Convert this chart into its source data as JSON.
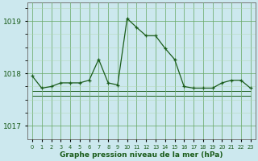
{
  "x": [
    0,
    1,
    2,
    3,
    4,
    5,
    6,
    7,
    8,
    9,
    10,
    11,
    12,
    13,
    14,
    15,
    16,
    17,
    18,
    19,
    20,
    21,
    22,
    23
  ],
  "y_main": [
    1017.95,
    1017.72,
    1017.75,
    1017.82,
    1017.82,
    1017.82,
    1017.87,
    1018.27,
    1017.82,
    1017.78,
    1019.05,
    1018.88,
    1018.72,
    1018.72,
    1018.48,
    1018.27,
    1017.75,
    1017.72,
    1017.72,
    1017.72,
    1017.82,
    1017.87,
    1017.87,
    1017.72
  ],
  "y_flat1": [
    1017.67,
    1017.67,
    1017.67,
    1017.67,
    1017.67,
    1017.67,
    1017.67,
    1017.67,
    1017.67,
    1017.67,
    1017.67,
    1017.67,
    1017.67,
    1017.67,
    1017.67,
    1017.67,
    1017.67,
    1017.67,
    1017.67,
    1017.67,
    1017.67,
    1017.67,
    1017.67,
    1017.67
  ],
  "y_flat2": [
    1017.57,
    1017.57,
    1017.57,
    1017.57,
    1017.57,
    1017.57,
    1017.57,
    1017.57,
    1017.57,
    1017.57,
    1017.57,
    1017.57,
    1017.57,
    1017.57,
    1017.57,
    1017.57,
    1017.57,
    1017.57,
    1017.57,
    1017.57,
    1017.57,
    1017.57,
    1017.57,
    1017.57
  ],
  "bg_color": "#cce8ee",
  "line_color": "#1a5c1a",
  "grid_major_color": "#6aaa6a",
  "grid_minor_color": "#b0d8b0",
  "xlabel": "Graphe pression niveau de la mer (hPa)",
  "yticks": [
    1017,
    1018,
    1019
  ],
  "ylim": [
    1016.75,
    1019.35
  ],
  "xlim": [
    -0.5,
    23.5
  ]
}
